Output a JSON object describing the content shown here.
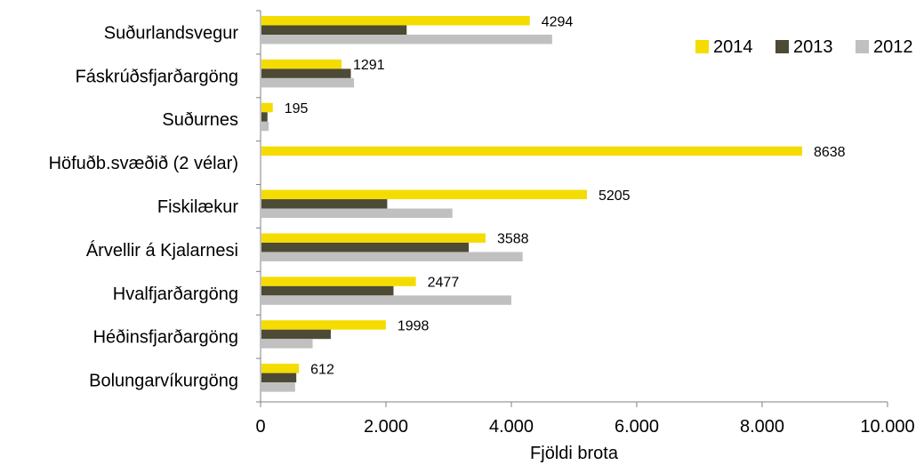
{
  "chart_data": {
    "type": "bar",
    "orientation": "horizontal",
    "categories": [
      "Suðurlandsvegur",
      "Fáskrúðsfjarðargöng",
      "Suðurnes",
      "Höfuðb.svæðið (2 vélar)",
      "Fiskilækur",
      "Árvellir á Kjalarnesi",
      "Hvalfjarðargöng",
      "Héðinsfjarðargöng",
      "Bolungarvíkurgöng"
    ],
    "series": [
      {
        "name": "2014",
        "color": "#f5dc00",
        "values": [
          4294,
          1291,
          195,
          8638,
          5205,
          3588,
          2477,
          1998,
          612
        ],
        "data_labels": [
          "4294",
          "1291",
          "195",
          "8638",
          "5205",
          "3588",
          "2477",
          "1998",
          "612"
        ]
      },
      {
        "name": "2013",
        "color": "#4d4a35",
        "values": [
          2330,
          1440,
          110,
          0,
          2020,
          3320,
          2120,
          1120,
          570
        ],
        "data_labels": []
      },
      {
        "name": "2012",
        "color": "#c0c0c0",
        "values": [
          4650,
          1490,
          130,
          0,
          3060,
          4180,
          4000,
          830,
          550
        ],
        "data_labels": []
      }
    ],
    "xlim": [
      0,
      10000
    ],
    "xticks": [
      0,
      2000,
      4000,
      6000,
      8000,
      10000
    ],
    "xtick_labels": [
      "0",
      "2.000",
      "4.000",
      "6.000",
      "8.000",
      "10.000"
    ],
    "xlabel": "Fjöldi brota",
    "ylabel": "",
    "title": "",
    "legend_position": "top-right",
    "grid": false
  }
}
